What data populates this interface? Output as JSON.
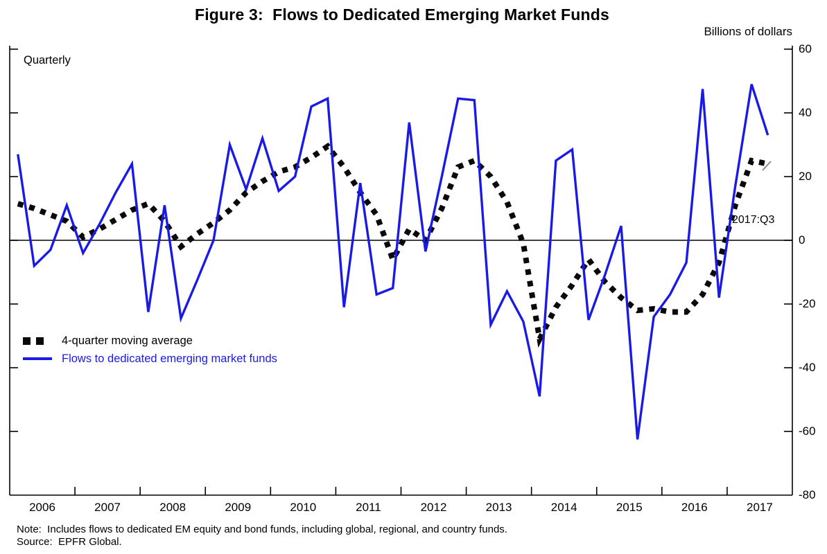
{
  "figure": {
    "title": "Figure 3:  Flows to Dedicated Emerging Market Funds",
    "units_label": "Billions of dollars",
    "frequency_label": "Quarterly",
    "annotation_label": "2017:Q3",
    "note": "Note:  Includes flows to dedicated EM equity and bond funds, including global, regional, and country funds.",
    "source": "Source:  EPFR Global."
  },
  "legend": {
    "moving_average_label": "4-quarter moving average",
    "flows_label": "Flows to dedicated emerging market funds"
  },
  "colors": {
    "flows_line": "#1a1ae6",
    "moving_average_line": "#0a0a0a",
    "axis": "#000000"
  },
  "chart_data": {
    "type": "line",
    "title": "Figure 3: Flows to Dedicated Emerging Market Funds",
    "ylabel": "Billions of dollars",
    "frequency": "quarterly",
    "x_start": "2006Q1",
    "x_end": "2017Q3",
    "ylim": [
      -80,
      60
    ],
    "y_ticks": [
      60,
      40,
      20,
      0,
      -20,
      -40,
      -60,
      -80
    ],
    "x_tick_years": [
      "2006",
      "2007",
      "2008",
      "2009",
      "2010",
      "2011",
      "2012",
      "2013",
      "2014",
      "2015",
      "2016",
      "2017"
    ],
    "grid": "zero-line-only",
    "legend_position": "inside-left-bottom",
    "series": [
      {
        "name": "Flows to dedicated emerging market funds",
        "style": "solid",
        "color": "#1a1ae6",
        "values": [
          27,
          -8,
          -3,
          11,
          -4,
          5,
          15,
          24,
          -22.5,
          11,
          -24.5,
          -12.5,
          0,
          30,
          16,
          32,
          15.5,
          20,
          42,
          44.5,
          -21,
          18,
          -17,
          -15,
          37,
          -3.5,
          20,
          44.5,
          44,
          -26.5,
          -16,
          -25.5,
          -49,
          25,
          28.5,
          -25,
          -11,
          4.5,
          -62.5,
          -24,
          -17,
          -7,
          47.5,
          -18,
          17,
          49,
          33
        ]
      },
      {
        "name": "4-quarter moving average",
        "style": "dashed-squares",
        "color": "#0a0a0a",
        "values": [
          11.5,
          10,
          8,
          6,
          1,
          3.5,
          6.5,
          9.5,
          11.5,
          6,
          -2,
          2,
          5.5,
          9.5,
          15,
          18.5,
          21.5,
          23,
          26,
          29.5,
          23,
          15,
          8,
          -6,
          3.5,
          0,
          10,
          23,
          25,
          20,
          12,
          -1,
          -31,
          -21,
          -14,
          -6,
          -13,
          -18,
          -22,
          -21.5,
          -22.5,
          -22.5,
          -17,
          -7,
          11,
          25,
          24
        ]
      }
    ],
    "annotation": {
      "text": "2017:Q3",
      "points_to": "last value 2017:Q3"
    }
  }
}
